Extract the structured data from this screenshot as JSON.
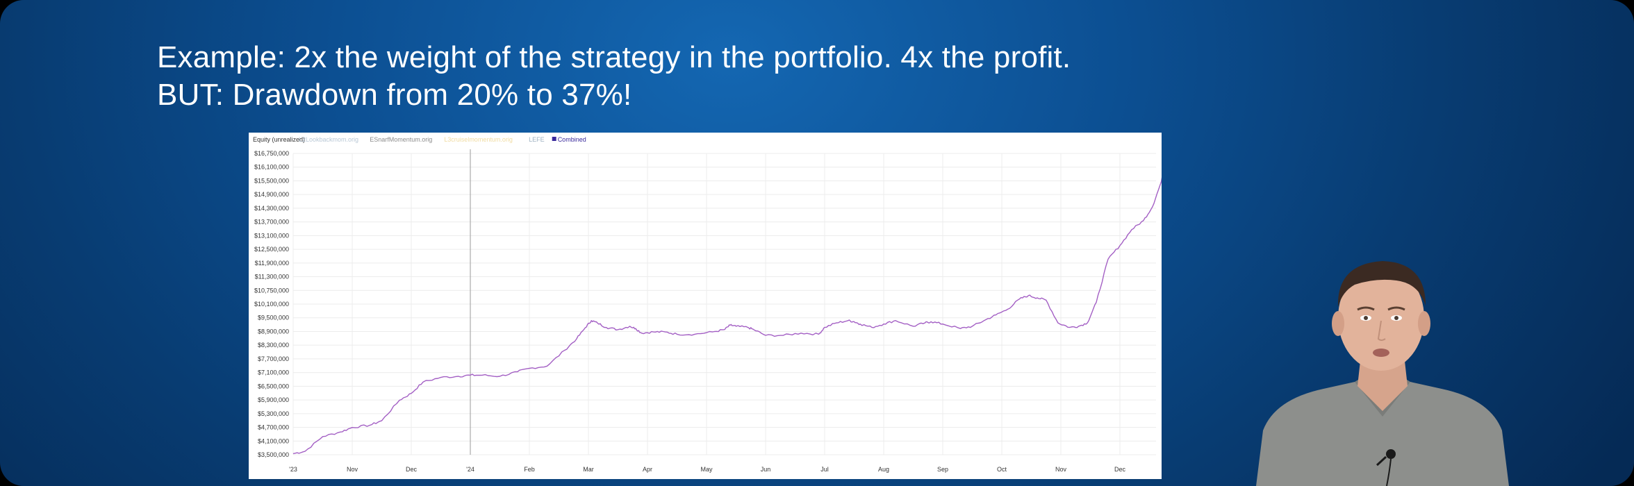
{
  "headline": {
    "line1": "Example: 2x the weight of the strategy in the portfolio. 4x the profit.",
    "line2": "BUT: Drawdown from 20% to 37%!"
  },
  "colors": {
    "background": "#0c4f92",
    "combined_line": "#a35fc4",
    "combined_marker": "#3a2a9c",
    "grid": "#ececec"
  },
  "chart_data": {
    "type": "line",
    "title": "Equity (unrealized)",
    "legend_position": "top-left",
    "legend": [
      {
        "name": "L2Lookbackmom.orig",
        "color": "#b9c8d6"
      },
      {
        "name": "ESnarfMomentum.orig",
        "color": "#8c8c8c"
      },
      {
        "name": "L3cruiselmomentum.orig",
        "color": "#f0dca2"
      },
      {
        "name": "LEFE",
        "color": "#9fb2c2"
      },
      {
        "name": "Combined",
        "color": "#3a2a9c"
      }
    ],
    "y_ticks": [
      "$16,750,000",
      "$16,100,000",
      "$15,500,000",
      "$14,900,000",
      "$14,300,000",
      "$13,700,000",
      "$13,100,000",
      "$12,500,000",
      "$11,900,000",
      "$11,300,000",
      "$10,750,000",
      "$10,100,000",
      "$9,500,000",
      "$8,900,000",
      "$8,300,000",
      "$7,700,000",
      "$7,100,000",
      "$6,500,000",
      "$5,900,000",
      "$5,300,000",
      "$4,700,000",
      "$4,100,000",
      "$3,500,000"
    ],
    "x_ticks": [
      "'23",
      "Nov",
      "Dec",
      "'24",
      "Feb",
      "Mar",
      "Apr",
      "May",
      "Jun",
      "Jul",
      "Aug",
      "Sep",
      "Oct",
      "Nov",
      "Dec"
    ],
    "ylim": [
      3500000,
      16750000
    ],
    "grid": true,
    "series": [
      {
        "name": "Combined",
        "x": [
          0,
          0.2,
          0.5,
          0.8,
          1.0,
          1.3,
          1.5,
          1.8,
          2.0,
          2.2,
          2.5,
          2.8,
          3.0,
          3.2,
          3.5,
          3.8,
          4.0,
          4.3,
          4.6,
          4.8,
          4.95,
          5.05,
          5.15,
          5.3,
          5.5,
          5.7,
          5.8,
          5.9,
          6.1,
          6.3,
          6.5,
          6.8,
          7.1,
          7.3,
          7.4,
          7.5,
          7.7,
          7.8,
          8.0,
          8.3,
          8.6,
          8.9,
          9.0,
          9.2,
          9.4,
          9.5,
          9.6,
          9.8,
          10.0,
          10.2,
          10.5,
          10.7,
          10.8,
          11.0,
          11.3,
          11.5,
          11.7,
          11.9,
          12.1,
          12.3,
          12.45,
          12.6,
          12.75,
          12.95,
          13.15,
          13.3,
          13.45,
          13.6,
          13.8,
          14.0,
          14.2,
          14.4,
          14.55,
          14.7,
          14.8,
          14.9,
          14.98
        ],
        "y": [
          3550000,
          3650000,
          4300000,
          4500000,
          4700000,
          4800000,
          5000000,
          5900000,
          6200000,
          6700000,
          6900000,
          6950000,
          7000000,
          7000000,
          6950000,
          7150000,
          7300000,
          7400000,
          8100000,
          8600000,
          9100000,
          9400000,
          9300000,
          9100000,
          9000000,
          9150000,
          9050000,
          8850000,
          8900000,
          8900000,
          8800000,
          8800000,
          8900000,
          9000000,
          9200000,
          9150000,
          9100000,
          9000000,
          8750000,
          8750000,
          8850000,
          8800000,
          9100000,
          9300000,
          9400000,
          9350000,
          9250000,
          9100000,
          9250000,
          9400000,
          9150000,
          9300000,
          9350000,
          9250000,
          9050000,
          9150000,
          9400000,
          9650000,
          9900000,
          10350000,
          10500000,
          10400000,
          10300000,
          9300000,
          9100000,
          9150000,
          9300000,
          10200000,
          12100000,
          12700000,
          13400000,
          13800000,
          14400000,
          15500000,
          16700000,
          16400000,
          15100000
        ]
      }
    ]
  }
}
